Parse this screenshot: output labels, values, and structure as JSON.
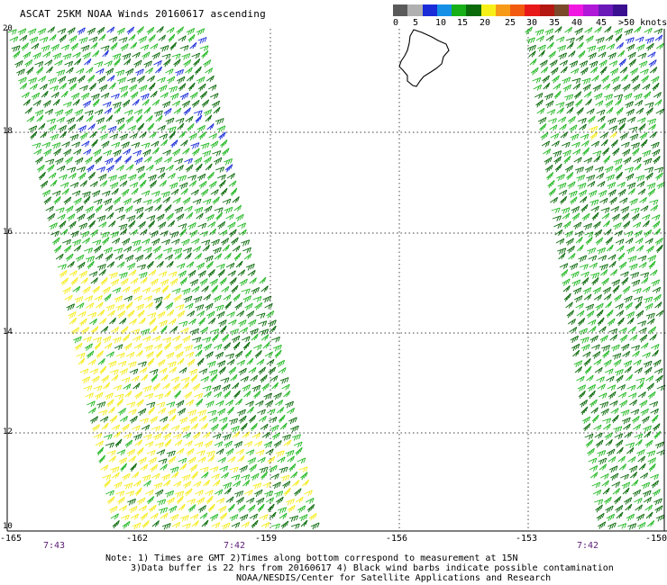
{
  "title": "ASCAT 25KM NOAA Winds 20160617 ascending",
  "legend": {
    "labels": [
      "0",
      "5",
      "10",
      "15",
      "20",
      "25",
      "30",
      "35",
      "40",
      "45",
      ">50 knots"
    ],
    "colors": [
      "#5a5a5a",
      "#b0b0b0",
      "#1a2bd8",
      "#1590e6",
      "#18b018",
      "#0b6b0b",
      "#f7f018",
      "#f79a18",
      "#f25a10",
      "#e81818",
      "#b41810",
      "#7a4a2a",
      "#f018e0",
      "#b018d8",
      "#6a18b8",
      "#3a1090"
    ]
  },
  "map": {
    "lat_labels": [
      "20",
      "18",
      "16",
      "14",
      "12",
      "10"
    ],
    "lon_labels": [
      "-165",
      "-162",
      "-159",
      "-156",
      "-153",
      "-150"
    ],
    "time_labels": [
      "7:43",
      "7:42",
      "7:42"
    ],
    "barb_colors": {
      "green_light": "#22b822",
      "green_dark": "#0a6a0a",
      "yellow": "#f4ec1c",
      "blue": "#1a2bd8"
    }
  },
  "notes": {
    "line1": "Note: 1) Times are GMT 2)Times along bottom correspond to measurement at 15N",
    "line2": "3)Data buffer is 22 hrs from 20160617 4) Black wind barbs indicate possible contamination",
    "line3": "NOAA/NESDIS/Center for Satellite Applications and Research"
  }
}
